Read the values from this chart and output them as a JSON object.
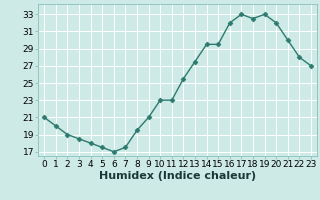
{
  "x": [
    0,
    1,
    2,
    3,
    4,
    5,
    6,
    7,
    8,
    9,
    10,
    11,
    12,
    13,
    14,
    15,
    16,
    17,
    18,
    19,
    20,
    21,
    22,
    23
  ],
  "y": [
    21,
    20,
    19,
    18.5,
    18,
    17.5,
    17,
    17.5,
    19.5,
    21,
    23,
    23,
    25.5,
    27.5,
    29.5,
    29.5,
    32,
    33,
    32.5,
    33,
    32,
    30,
    28,
    27
  ],
  "line_color": "#2d7a6e",
  "marker": "D",
  "marker_size": 2.5,
  "bg_color": "#ceeae7",
  "grid_color": "#ffffff",
  "xlabel": "Humidex (Indice chaleur)",
  "xlabel_fontsize": 8,
  "ylabel_ticks": [
    17,
    19,
    21,
    23,
    25,
    27,
    29,
    31,
    33
  ],
  "xlim": [
    -0.5,
    23.5
  ],
  "ylim": [
    16.5,
    34.2
  ],
  "tick_fontsize": 6.5,
  "line_width": 1.0
}
